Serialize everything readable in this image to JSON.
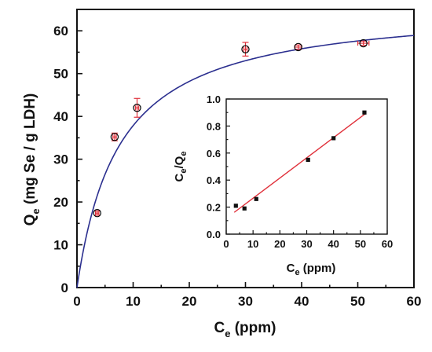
{
  "chart_data": [
    {
      "id": "main",
      "type": "scatter",
      "xlabel": {
        "main": "C",
        "sub": "e",
        "rest": "  (ppm)"
      },
      "ylabel": {
        "main": "Q",
        "sub": "e",
        "rest": "  (mg Se / g LDH)"
      },
      "xlim": [
        0,
        60
      ],
      "ylim": [
        0,
        65
      ],
      "xticks": [
        0,
        10,
        20,
        30,
        40,
        50,
        60
      ],
      "yticks": [
        0,
        10,
        20,
        30,
        40,
        50,
        60
      ],
      "series": [
        {
          "kind": "points",
          "marker": "open-circle",
          "color": "#000000",
          "errorbar_color": "#e0303a",
          "points": [
            {
              "x": 3.6,
              "y": 17.4,
              "yerr": 0.5,
              "xerr": 0.3
            },
            {
              "x": 6.7,
              "y": 35.2,
              "yerr": 0.9,
              "xerr": 0.3
            },
            {
              "x": 10.7,
              "y": 42.0,
              "yerr": 2.2,
              "xerr": 0.3
            },
            {
              "x": 30.0,
              "y": 55.7,
              "yerr": 1.6,
              "xerr": 0.3
            },
            {
              "x": 39.4,
              "y": 56.2,
              "yerr": 0.5,
              "xerr": 0.6
            },
            {
              "x": 51.0,
              "y": 57.1,
              "yerr": 0.5,
              "xerr": 1.0
            }
          ]
        },
        {
          "kind": "fit-curve",
          "model": "langmuir",
          "color": "#2b2f8f",
          "qmax": 66.3,
          "K": 0.133
        }
      ]
    },
    {
      "id": "inset",
      "type": "scatter",
      "xlabel": {
        "main": "C",
        "sub": "e",
        "rest": " (ppm)"
      },
      "ylabel": {
        "main": "C",
        "sub1": "e",
        "mid": "/Q",
        "sub2": "e"
      },
      "xlim": [
        0,
        60
      ],
      "ylim": [
        0,
        1.0
      ],
      "xticks": [
        0,
        10,
        20,
        30,
        40,
        50,
        60
      ],
      "yticks": [
        "0.0",
        "0.2",
        "0.4",
        "0.6",
        "0.8",
        "1.0"
      ],
      "series": [
        {
          "kind": "points",
          "marker": "filled-square",
          "color": "#111111",
          "points": [
            {
              "x": 3.6,
              "y": 0.21
            },
            {
              "x": 6.8,
              "y": 0.19
            },
            {
              "x": 11.2,
              "y": 0.26
            },
            {
              "x": 30.5,
              "y": 0.55
            },
            {
              "x": 40.0,
              "y": 0.71
            },
            {
              "x": 51.5,
              "y": 0.9
            }
          ]
        },
        {
          "kind": "linear-fit",
          "color": "#e0303a",
          "x_range": [
            3.0,
            52.0
          ],
          "slope": 0.01494,
          "intercept": 0.1165
        }
      ]
    }
  ]
}
